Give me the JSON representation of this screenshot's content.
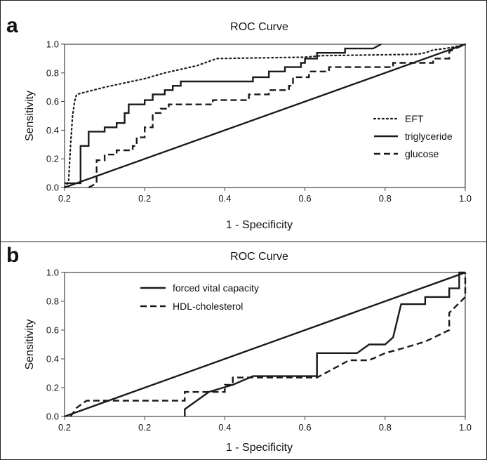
{
  "chart_data": [
    {
      "panel": "a",
      "type": "line",
      "title": "ROC Curve",
      "xlabel": "1 - Specificity",
      "ylabel": "Sensitivity",
      "xlim": [
        0,
        1
      ],
      "ylim": [
        0,
        1
      ],
      "xticks": [
        "0.2",
        "0.2",
        "0.4",
        "0.6",
        "0.8",
        "1.0"
      ],
      "yticks": [
        "0.0",
        "0.2",
        "0.4",
        "0.6",
        "0.8",
        "1.0"
      ],
      "legend_position": "right",
      "grid": false,
      "series": [
        {
          "name": "EFT",
          "style": "dotted",
          "points": [
            [
              0,
              0
            ],
            [
              0.01,
              0.04
            ],
            [
              0.015,
              0.3
            ],
            [
              0.02,
              0.5
            ],
            [
              0.025,
              0.6
            ],
            [
              0.03,
              0.65
            ],
            [
              0.1,
              0.7
            ],
            [
              0.2,
              0.76
            ],
            [
              0.25,
              0.8
            ],
            [
              0.33,
              0.85
            ],
            [
              0.38,
              0.9
            ],
            [
              0.6,
              0.91
            ],
            [
              0.64,
              0.92
            ],
            [
              0.88,
              0.93
            ],
            [
              0.9,
              0.94
            ],
            [
              0.92,
              0.96
            ],
            [
              0.95,
              0.97
            ],
            [
              0.97,
              0.98
            ],
            [
              1,
              1
            ]
          ]
        },
        {
          "name": "triglyceride",
          "style": "solid",
          "points": [
            [
              0,
              0.03
            ],
            [
              0.04,
              0.03
            ],
            [
              0.04,
              0.29
            ],
            [
              0.06,
              0.29
            ],
            [
              0.06,
              0.39
            ],
            [
              0.1,
              0.39
            ],
            [
              0.1,
              0.42
            ],
            [
              0.13,
              0.42
            ],
            [
              0.13,
              0.45
            ],
            [
              0.15,
              0.45
            ],
            [
              0.15,
              0.52
            ],
            [
              0.16,
              0.52
            ],
            [
              0.16,
              0.58
            ],
            [
              0.2,
              0.58
            ],
            [
              0.2,
              0.61
            ],
            [
              0.22,
              0.61
            ],
            [
              0.22,
              0.65
            ],
            [
              0.25,
              0.65
            ],
            [
              0.25,
              0.68
            ],
            [
              0.27,
              0.68
            ],
            [
              0.27,
              0.71
            ],
            [
              0.29,
              0.71
            ],
            [
              0.29,
              0.74
            ],
            [
              0.47,
              0.74
            ],
            [
              0.47,
              0.77
            ],
            [
              0.51,
              0.77
            ],
            [
              0.51,
              0.81
            ],
            [
              0.55,
              0.81
            ],
            [
              0.55,
              0.84
            ],
            [
              0.59,
              0.84
            ],
            [
              0.59,
              0.87
            ],
            [
              0.6,
              0.87
            ],
            [
              0.6,
              0.9
            ],
            [
              0.63,
              0.9
            ],
            [
              0.63,
              0.94
            ],
            [
              0.7,
              0.94
            ],
            [
              0.7,
              0.97
            ],
            [
              0.77,
              0.97
            ],
            [
              0.79,
              1
            ]
          ]
        },
        {
          "name": "glucose",
          "style": "dashed",
          "points": [
            [
              0.06,
              0
            ],
            [
              0.08,
              0.03
            ],
            [
              0.08,
              0.19
            ],
            [
              0.1,
              0.19
            ],
            [
              0.1,
              0.23
            ],
            [
              0.13,
              0.23
            ],
            [
              0.13,
              0.26
            ],
            [
              0.17,
              0.26
            ],
            [
              0.17,
              0.29
            ],
            [
              0.18,
              0.29
            ],
            [
              0.18,
              0.35
            ],
            [
              0.2,
              0.35
            ],
            [
              0.2,
              0.42
            ],
            [
              0.22,
              0.42
            ],
            [
              0.22,
              0.52
            ],
            [
              0.24,
              0.52
            ],
            [
              0.24,
              0.55
            ],
            [
              0.26,
              0.55
            ],
            [
              0.26,
              0.58
            ],
            [
              0.37,
              0.58
            ],
            [
              0.37,
              0.61
            ],
            [
              0.46,
              0.61
            ],
            [
              0.46,
              0.65
            ],
            [
              0.51,
              0.65
            ],
            [
              0.51,
              0.68
            ],
            [
              0.56,
              0.68
            ],
            [
              0.56,
              0.71
            ],
            [
              0.57,
              0.71
            ],
            [
              0.57,
              0.77
            ],
            [
              0.61,
              0.77
            ],
            [
              0.61,
              0.81
            ],
            [
              0.66,
              0.81
            ],
            [
              0.66,
              0.84
            ],
            [
              0.82,
              0.84
            ],
            [
              0.82,
              0.87
            ],
            [
              0.92,
              0.87
            ],
            [
              0.92,
              0.9
            ],
            [
              0.96,
              0.9
            ],
            [
              0.96,
              0.95
            ],
            [
              1,
              1
            ]
          ]
        },
        {
          "name": "",
          "style": "solid",
          "points": [
            [
              0,
              0
            ],
            [
              1,
              1
            ]
          ]
        }
      ]
    },
    {
      "panel": "b",
      "type": "line",
      "title": "ROC Curve",
      "xlabel": "1 - Specificity",
      "ylabel": "Sensitivity",
      "xlim": [
        0,
        1
      ],
      "ylim": [
        0,
        1
      ],
      "xticks": [
        "0.2",
        "0.2",
        "0.4",
        "0.6",
        "0.8",
        "1.0"
      ],
      "yticks": [
        "0.0",
        "0.2",
        "0.4",
        "0.6",
        "0.8",
        "1.0"
      ],
      "legend_position": "top-left",
      "grid": false,
      "series": [
        {
          "name": "forced vital capacity",
          "style": "solid",
          "points": [
            [
              0.3,
              0
            ],
            [
              0.3,
              0.05
            ],
            [
              0.33,
              0.11
            ],
            [
              0.36,
              0.17
            ],
            [
              0.42,
              0.22
            ],
            [
              0.47,
              0.28
            ],
            [
              0.63,
              0.28
            ],
            [
              0.63,
              0.44
            ],
            [
              0.73,
              0.44
            ],
            [
              0.76,
              0.5
            ],
            [
              0.8,
              0.5
            ],
            [
              0.82,
              0.55
            ],
            [
              0.84,
              0.78
            ],
            [
              0.9,
              0.78
            ],
            [
              0.9,
              0.83
            ],
            [
              0.96,
              0.83
            ],
            [
              0.96,
              0.89
            ],
            [
              0.985,
              0.89
            ],
            [
              0.985,
              1
            ],
            [
              1,
              1
            ]
          ]
        },
        {
          "name": "HDL-cholesterol",
          "style": "dashed",
          "points": [
            [
              0.015,
              0
            ],
            [
              0.03,
              0.06
            ],
            [
              0.055,
              0.11
            ],
            [
              0.3,
              0.11
            ],
            [
              0.3,
              0.17
            ],
            [
              0.4,
              0.17
            ],
            [
              0.4,
              0.22
            ],
            [
              0.42,
              0.22
            ],
            [
              0.42,
              0.27
            ],
            [
              0.63,
              0.27
            ],
            [
              0.67,
              0.33
            ],
            [
              0.71,
              0.39
            ],
            [
              0.76,
              0.39
            ],
            [
              0.8,
              0.44
            ],
            [
              0.84,
              0.47
            ],
            [
              0.9,
              0.52
            ],
            [
              0.96,
              0.6
            ],
            [
              0.96,
              0.72
            ],
            [
              1,
              0.83
            ],
            [
              1,
              1
            ]
          ]
        },
        {
          "name": "",
          "style": "solid",
          "points": [
            [
              0,
              0
            ],
            [
              1,
              1
            ]
          ]
        }
      ]
    }
  ]
}
